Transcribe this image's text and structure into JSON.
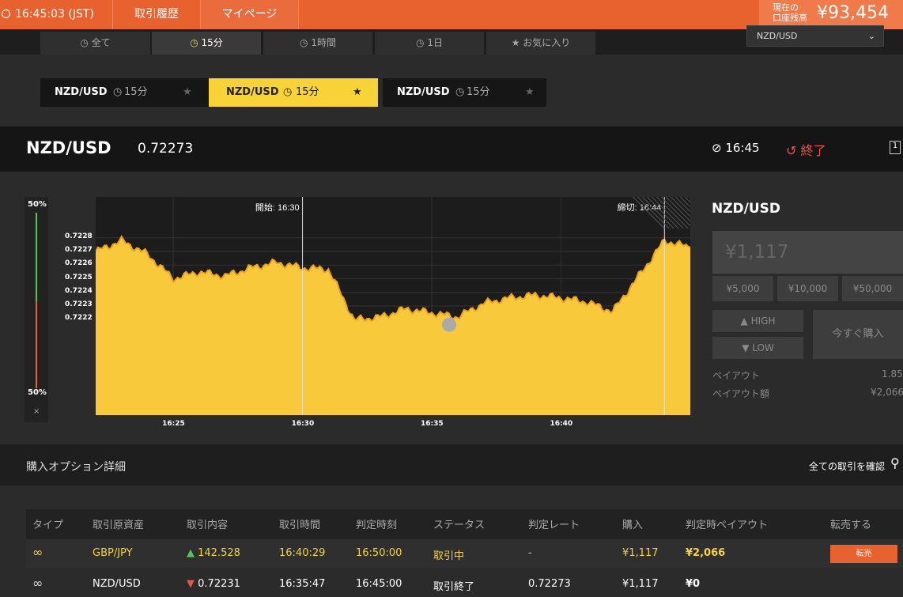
{
  "topbar": {
    "time": "16:45:03 (JST)",
    "history": "取引履歴",
    "mypage": "マイページ",
    "balance_label_1": "現在の",
    "balance_label_2": "口座残高",
    "balance": "¥93,454"
  },
  "tabs": [
    {
      "label": "全て"
    },
    {
      "label": "15分"
    },
    {
      "label": "1時間"
    },
    {
      "label": "1日"
    },
    {
      "label": "お気に入り"
    }
  ],
  "pair_select": "NZD/USD",
  "chips": [
    {
      "pair": "NZD/USD",
      "period": "15分"
    },
    {
      "pair": "NZD/USD",
      "period": "15分"
    },
    {
      "pair": "NZD/USD",
      "period": "15分"
    }
  ],
  "header": {
    "pair": "NZD/USD",
    "rate": "0.72273",
    "time": "16:45",
    "status": "終了",
    "right_icon": "1"
  },
  "sentiment": {
    "top": "50%",
    "bottom": "50%",
    "close": "×"
  },
  "chart_data": {
    "type": "area",
    "x": [
      "16:22",
      "16:23",
      "16:24",
      "16:25",
      "16:26",
      "16:27",
      "16:28",
      "16:29",
      "16:30",
      "16:31",
      "16:32",
      "16:33",
      "16:34",
      "16:35",
      "16:36",
      "16:37",
      "16:38",
      "16:39",
      "16:40",
      "16:41",
      "16:42",
      "16:43",
      "16:44",
      "16:45"
    ],
    "values": [
      0.7227,
      0.72278,
      0.72268,
      0.7225,
      0.72255,
      0.72252,
      0.72258,
      0.72262,
      0.72258,
      0.72257,
      0.7222,
      0.72222,
      0.72228,
      0.72225,
      0.72222,
      0.72232,
      0.72236,
      0.72238,
      0.72236,
      0.72233,
      0.72226,
      0.72252,
      0.72278,
      0.72273
    ],
    "yticks": [
      "0.7228",
      "0.7227",
      "0.7226",
      "0.7225",
      "0.7224",
      "0.7223",
      "0.7222"
    ],
    "xticks": [
      "16:25",
      "16:30",
      "16:35",
      "16:40"
    ],
    "start_label": "開始: 16:30",
    "end_label": "締切: 16:44",
    "series_color": "#f7c93b"
  },
  "panel": {
    "pair": "NZD/USD",
    "amount": "¥1,117",
    "presets": [
      "¥5,000",
      "¥10,000",
      "¥50,000"
    ],
    "high": "HIGH",
    "low": "LOW",
    "buy": "今すぐ購入",
    "payout_label": "ペイアウト",
    "payout": "1.85",
    "payout_amount_label": "ペイアウト額",
    "payout_amount": "¥2,066"
  },
  "section": {
    "title": "購入オプション詳細",
    "confirm": "全ての取引を確認"
  },
  "table": {
    "headers": [
      "タイプ",
      "取引原資産",
      "取引内容",
      "取引時間",
      "判定時刻",
      "ステータス",
      "判定レート",
      "購入",
      "判定時ペイアウト",
      "転売する"
    ],
    "rows": [
      {
        "asset": "GBP/JPY",
        "entry": "142.528",
        "time": "16:40:29",
        "expiry": "16:50:00",
        "status": "取引中",
        "rate": "-",
        "buy": "¥1,117",
        "payout": "¥2,066",
        "action": "転売"
      },
      {
        "asset": "NZD/USD",
        "entry": "0.72231",
        "time": "16:35:47",
        "expiry": "16:45:00",
        "status": "取引終了",
        "rate": "0.72273",
        "buy": "¥1,117",
        "payout": "¥0"
      }
    ]
  }
}
